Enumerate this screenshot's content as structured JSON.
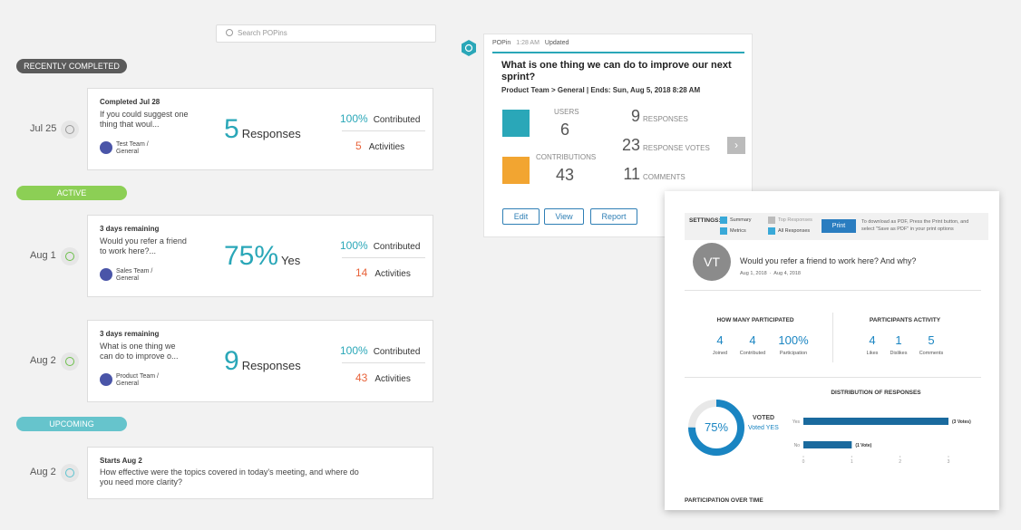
{
  "search_placeholder": "Search POPins",
  "sections": [
    {
      "label": "RECENTLY COMPLETED",
      "items": [
        {
          "date": "Jul 25",
          "status": "Completed Jul 28",
          "question": "If you could suggest one thing that woul...",
          "team": "Test Team / General",
          "big": "5",
          "big_label": "Responses",
          "contributed": "100%",
          "contributed_label": "Contributed",
          "activities": "5",
          "activities_label": "Activities"
        }
      ]
    },
    {
      "label": "ACTIVE",
      "items": [
        {
          "date": "Aug 1",
          "status": "3 days remaining",
          "question": "Would you refer a friend to work here?...",
          "team": "Sales Team / General",
          "big": "75%",
          "big_label": "Yes",
          "contributed": "100%",
          "contributed_label": "Contributed",
          "activities": "14",
          "activities_label": "Activities"
        },
        {
          "date": "Aug 2",
          "status": "3 days remaining",
          "question": "What is one thing we can do to improve o...",
          "team": "Product Team / General",
          "big": "9",
          "big_label": "Responses",
          "contributed": "100%",
          "contributed_label": "Contributed",
          "activities": "43",
          "activities_label": "Activities"
        }
      ]
    },
    {
      "label": "UPCOMING",
      "items": [
        {
          "date": "Aug 2",
          "status": "Starts Aug 2",
          "question": "How effective were the topics covered in today's meeting, and where do you need more clarity?"
        }
      ]
    }
  ],
  "popin": {
    "label": "POPin",
    "time": "1:28 AM",
    "status": "Updated",
    "title": "What is one thing we can do to improve our next sprint?",
    "path": "Product Team > General | Ends: Sun, Aug 5, 2018 8:28 AM",
    "users_label": "USERS",
    "users": "6",
    "contributions_label": "CONTRIBUTIONS",
    "contributions": "43",
    "stats": [
      {
        "value": "9",
        "label": "RESPONSES"
      },
      {
        "value": "23",
        "label": "RESPONSE VOTES"
      },
      {
        "value": "11",
        "label": "COMMENTS"
      }
    ],
    "buttons": [
      "Edit",
      "View",
      "Report"
    ]
  },
  "report": {
    "settings_label": "SETTINGS:",
    "options": [
      "Summary",
      "Metrics",
      "Top Responses",
      "All Responses"
    ],
    "print": "Print",
    "print_note": "To download as PDF, Press the Print button, and select \"Save as PDF\" in your print options",
    "avatar": "VT",
    "question": "Would you refer a friend to work here? And why?",
    "dates": "Aug 1, 2018  ·  Aug 4, 2018",
    "participated_title": "HOW MANY PARTICIPATED",
    "participated": [
      {
        "value": "4",
        "label": "Joined"
      },
      {
        "value": "4",
        "label": "Contributed"
      },
      {
        "value": "100%",
        "label": "Participation"
      }
    ],
    "activity_title": "PARTICIPANTS ACTIVITY",
    "activity": [
      {
        "value": "4",
        "label": "Likes"
      },
      {
        "value": "1",
        "label": "Dislikes"
      },
      {
        "value": "5",
        "label": "Comments"
      }
    ],
    "donut": {
      "value": 75,
      "label": "75%"
    },
    "voted_label": "VOTED",
    "voted_answer": "Voted YES",
    "distribution": {
      "title": "DISTRIBUTION OF RESPONSES",
      "categories": [
        "Yes",
        "No"
      ],
      "values": [
        3,
        1
      ],
      "value_labels": [
        "(3 Votes)",
        "(1 Vote)"
      ],
      "xlim": [
        0,
        3
      ],
      "xticks": [
        0,
        1,
        2,
        3
      ]
    },
    "over_time_title": "PARTICIPATION OVER TIME"
  }
}
